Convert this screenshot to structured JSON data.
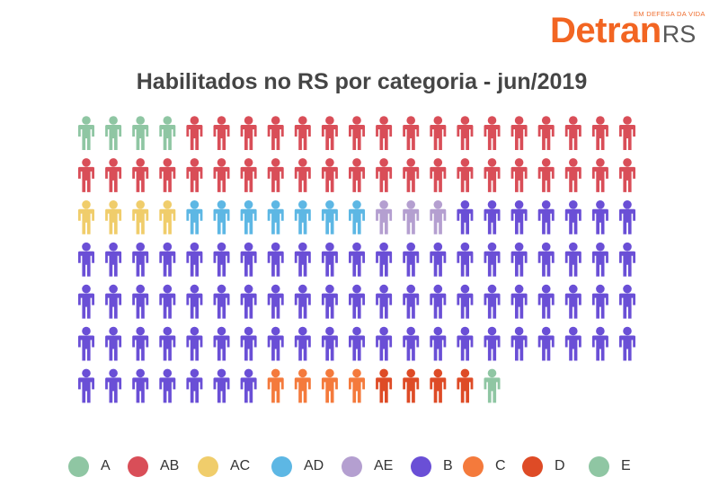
{
  "logo": {
    "brand_main": "Detran",
    "brand_suffix": "RS",
    "tagline": "EM DEFESA DA VIDA",
    "color": "#f26522"
  },
  "chart_data": {
    "type": "pictogram",
    "title": "Habilitados no RS por categoria - jun/2019",
    "icon": "person-icon",
    "rows": 7,
    "columns": 21,
    "categories": [
      {
        "name": "A",
        "icons": 4,
        "color": "#8fc6a3"
      },
      {
        "name": "AB",
        "icons": 38,
        "color": "#d94e58"
      },
      {
        "name": "AC",
        "icons": 4,
        "color": "#f0cd6b"
      },
      {
        "name": "AD",
        "icons": 7,
        "color": "#5db7e4"
      },
      {
        "name": "AE",
        "icons": 3,
        "color": "#b49fd0"
      },
      {
        "name": "B",
        "icons": 77,
        "color": "#6a4fd6"
      },
      {
        "name": "C",
        "icons": 4,
        "color": "#f47a3c"
      },
      {
        "name": "D",
        "icons": 4,
        "color": "#de4b26"
      },
      {
        "name": "E",
        "icons": 1,
        "color": "#8fc6a3"
      }
    ],
    "legend_position": "bottom"
  }
}
